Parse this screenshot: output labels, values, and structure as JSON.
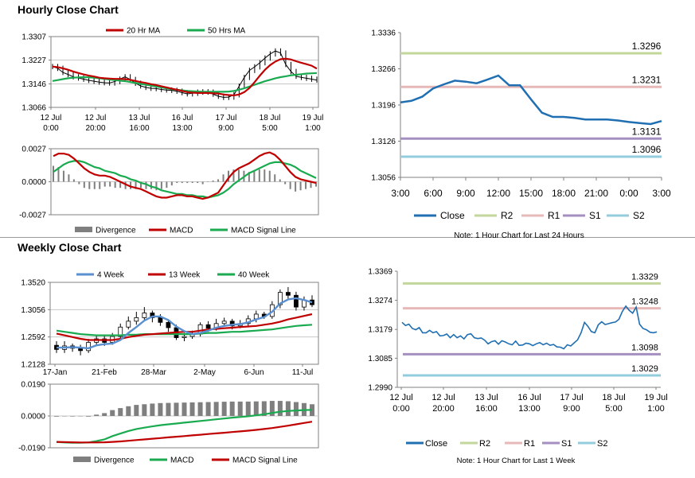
{
  "sections": {
    "hourly_title": "Hourly Close Chart",
    "weekly_title": "Weekly Close Chart"
  },
  "colors": {
    "ma_short": "#c00000",
    "ma_long": "#1aaa50",
    "close": "#1f6fb2",
    "week4": "#5a8fd0",
    "r2": "#c3d69b",
    "r1": "#e6b9b8",
    "s1": "#a48fc0",
    "s2": "#93cddd",
    "divergence": "#7f7f7f",
    "candle": "#000000"
  },
  "chart_data": [
    {
      "id": "hourly_price",
      "type": "candlestick",
      "title": "",
      "y_ticks": [
        "1.3307",
        "1.3227",
        "1.3146",
        "1.3066"
      ],
      "ylim": [
        1.3066,
        1.3307
      ],
      "x_ticks": [
        [
          "12 Jul",
          "0:00"
        ],
        [
          "12 Jul",
          "20:00"
        ],
        [
          "13 Jul",
          "16:00"
        ],
        [
          "16 Jul",
          "13:00"
        ],
        [
          "17 Jul",
          "9:00"
        ],
        [
          "18 Jul",
          "5:00"
        ],
        [
          "19 Jul",
          "1:00"
        ]
      ],
      "legend": [
        "20 Hr MA",
        "50 Hrs MA"
      ],
      "close": [
        1.3205,
        1.3199,
        1.3185,
        1.3178,
        1.317,
        1.3166,
        1.3162,
        1.3158,
        1.3155,
        1.3152,
        1.315,
        1.3149,
        1.3154,
        1.3162,
        1.317,
        1.3161,
        1.3148,
        1.3139,
        1.3134,
        1.3131,
        1.313,
        1.3127,
        1.3125,
        1.3124,
        1.3121,
        1.3116,
        1.3112,
        1.3114,
        1.3118,
        1.3119,
        1.3118,
        1.3111,
        1.3104,
        1.31,
        1.3101,
        1.3109,
        1.3138,
        1.3168,
        1.3192,
        1.3204,
        1.3218,
        1.3234,
        1.3248,
        1.3258,
        1.3251,
        1.3212,
        1.3188,
        1.3172,
        1.3168,
        1.3165,
        1.3162,
        1.3159
      ],
      "ma20": [
        1.3205,
        1.3203,
        1.3199,
        1.3194,
        1.3188,
        1.3183,
        1.3178,
        1.3174,
        1.3171,
        1.3167,
        1.3165,
        1.3164,
        1.3163,
        1.3163,
        1.3162,
        1.316,
        1.3156,
        1.3152,
        1.3149,
        1.3145,
        1.3142,
        1.3138,
        1.3134,
        1.313,
        1.3126,
        1.3122,
        1.3118,
        1.3116,
        1.3115,
        1.3115,
        1.3115,
        1.3114,
        1.3113,
        1.311,
        1.3108,
        1.3107,
        1.311,
        1.3118,
        1.3132,
        1.3152,
        1.3174,
        1.3194,
        1.321,
        1.3222,
        1.323,
        1.3232,
        1.3229,
        1.3223,
        1.3218,
        1.3213,
        1.3208,
        1.3198
      ],
      "ma50": [
        1.3156,
        1.3159,
        1.3162,
        1.3165,
        1.3167,
        1.3168,
        1.3169,
        1.3168,
        1.3167,
        1.3165,
        1.3163,
        1.3161,
        1.3159,
        1.3157,
        1.3155,
        1.3152,
        1.3149,
        1.3146,
        1.3143,
        1.314,
        1.3137,
        1.3134,
        1.3131,
        1.3128,
        1.3126,
        1.3124,
        1.3122,
        1.3121,
        1.312,
        1.3119,
        1.3119,
        1.3119,
        1.3119,
        1.3119,
        1.312,
        1.3122,
        1.3126,
        1.3131,
        1.3137,
        1.3143,
        1.3149,
        1.3155,
        1.316,
        1.3165,
        1.3169,
        1.3172,
        1.3175,
        1.3177,
        1.3179,
        1.3181,
        1.3182,
        1.3183
      ]
    },
    {
      "id": "hourly_macd",
      "type": "line+bar",
      "y_ticks": [
        "0.0027",
        "0.0000",
        "-0.0027"
      ],
      "ylim": [
        -0.0027,
        0.0027
      ],
      "legend": [
        "Divergence",
        "MACD",
        "MACD Signal Line"
      ],
      "macd": [
        0.0021,
        0.0023,
        0.0023,
        0.0022,
        0.0019,
        0.0015,
        0.0011,
        0.0008,
        0.0006,
        0.0005,
        0.0005,
        0.0004,
        0.0002,
        0.0,
        -0.0002,
        -0.0004,
        -0.0005,
        -0.0006,
        -0.0008,
        -0.001,
        -0.0012,
        -0.0013,
        -0.0013,
        -0.0012,
        -0.0011,
        -0.0011,
        -0.0012,
        -0.0012,
        -0.0013,
        -0.0014,
        -0.0013,
        -0.0011,
        -0.0009,
        -0.0003,
        0.0003,
        0.0008,
        0.0011,
        0.0013,
        0.0015,
        0.0018,
        0.0021,
        0.0023,
        0.0024,
        0.0022,
        0.0018,
        0.0013,
        0.0008,
        0.0004,
        0.0002,
        0.0001,
        0.0,
        -0.0001
      ],
      "signal": [
        0.0008,
        0.0011,
        0.0014,
        0.0016,
        0.0017,
        0.0017,
        0.0016,
        0.0014,
        0.0012,
        0.0011,
        0.0009,
        0.0008,
        0.0007,
        0.0005,
        0.0004,
        0.0002,
        0.0001,
        -0.0001,
        -0.0002,
        -0.0004,
        -0.0005,
        -0.0007,
        -0.0008,
        -0.0009,
        -0.001,
        -0.001,
        -0.0011,
        -0.0011,
        -0.0012,
        -0.0012,
        -0.0013,
        -0.0012,
        -0.0011,
        -0.0009,
        -0.0006,
        -0.0002,
        0.0001,
        0.0004,
        0.0007,
        0.0009,
        0.0011,
        0.0013,
        0.0015,
        0.0016,
        0.0016,
        0.0015,
        0.0014,
        0.0012,
        0.0009,
        0.0007,
        0.0005,
        0.0003
      ],
      "divergence": [
        0.0013,
        0.0012,
        0.0009,
        0.0006,
        0.0002,
        -0.0002,
        -0.0005,
        -0.0006,
        -0.0006,
        -0.0006,
        -0.0004,
        -0.0004,
        -0.0005,
        -0.0005,
        -0.0006,
        -0.0006,
        -0.0006,
        -0.0005,
        -0.0006,
        -0.0006,
        -0.0007,
        -0.0006,
        -0.0005,
        -0.0003,
        -0.0001,
        -0.0001,
        -0.0001,
        -0.0001,
        -0.0001,
        -0.0002,
        0.0,
        0.0001,
        0.0002,
        0.0006,
        0.0009,
        0.001,
        0.001,
        0.0009,
        0.0008,
        0.0009,
        0.001,
        0.001,
        0.0009,
        0.0006,
        0.0002,
        -0.0002,
        -0.0006,
        -0.0008,
        -0.0007,
        -0.0006,
        -0.0005,
        -0.0004
      ]
    },
    {
      "id": "hourly_24h",
      "type": "line",
      "y_ticks": [
        "1.3336",
        "1.3266",
        "1.3196",
        "1.3126",
        "1.3056"
      ],
      "ylim": [
        1.3056,
        1.3336
      ],
      "x_ticks": [
        "3:00",
        "6:00",
        "9:00",
        "12:00",
        "15:00",
        "18:00",
        "21:00",
        "0:00",
        "3:00"
      ],
      "x": [
        0,
        1,
        2,
        3,
        4,
        5,
        6,
        7,
        8,
        9,
        10,
        11,
        12,
        13,
        14,
        15,
        16,
        17,
        18,
        19,
        20,
        21,
        22,
        23,
        24
      ],
      "close": [
        1.3201,
        1.3204,
        1.3212,
        1.3228,
        1.3236,
        1.3243,
        1.3241,
        1.3238,
        1.3245,
        1.3253,
        1.3234,
        1.3234,
        1.3207,
        1.3181,
        1.3173,
        1.3173,
        1.3171,
        1.3168,
        1.3168,
        1.3168,
        1.3166,
        1.3163,
        1.3161,
        1.3159,
        1.3165
      ],
      "levels": [
        {
          "name": "R2",
          "value": 1.3296,
          "label": "1.3296"
        },
        {
          "name": "R1",
          "value": 1.3231,
          "label": "1.3231"
        },
        {
          "name": "S1",
          "value": 1.3131,
          "label": "1.3131"
        },
        {
          "name": "S2",
          "value": 1.3096,
          "label": "1.3096"
        }
      ],
      "legend": [
        "Close",
        "R2",
        "R1",
        "S1",
        "S2"
      ],
      "note": "Note: 1 Hour Chart for Last 24 Hours"
    },
    {
      "id": "weekly_price",
      "type": "candlestick",
      "y_ticks": [
        "1.3520",
        "1.3056",
        "1.2592",
        "1.2128"
      ],
      "ylim": [
        1.2128,
        1.352
      ],
      "x_ticks": [
        "17-Jan",
        "21-Feb",
        "28-Mar",
        "2-May",
        "6-Jun",
        "11-Jul"
      ],
      "legend": [
        "4 Week",
        "13 Week",
        "40 Week"
      ],
      "candles": [
        [
          1.245,
          1.238,
          1.252,
          1.232
        ],
        [
          1.238,
          1.244,
          1.252,
          1.232
        ],
        [
          1.244,
          1.24,
          1.248,
          1.234
        ],
        [
          1.24,
          1.236,
          1.246,
          1.228
        ],
        [
          1.236,
          1.25,
          1.256,
          1.232
        ],
        [
          1.25,
          1.256,
          1.262,
          1.246
        ],
        [
          1.256,
          1.25,
          1.262,
          1.244
        ],
        [
          1.25,
          1.26,
          1.266,
          1.246
        ],
        [
          1.26,
          1.276,
          1.282,
          1.254
        ],
        [
          1.276,
          1.286,
          1.294,
          1.272
        ],
        [
          1.286,
          1.292,
          1.302,
          1.28
        ],
        [
          1.292,
          1.3,
          1.31,
          1.286
        ],
        [
          1.3,
          1.292,
          1.304,
          1.284
        ],
        [
          1.292,
          1.284,
          1.298,
          1.278
        ],
        [
          1.284,
          1.275,
          1.288,
          1.268
        ],
        [
          1.275,
          1.258,
          1.28,
          1.254
        ],
        [
          1.258,
          1.26,
          1.266,
          1.252
        ],
        [
          1.26,
          1.264,
          1.27,
          1.256
        ],
        [
          1.264,
          1.28,
          1.284,
          1.26
        ],
        [
          1.28,
          1.274,
          1.286,
          1.268
        ],
        [
          1.274,
          1.282,
          1.29,
          1.27
        ],
        [
          1.282,
          1.286,
          1.292,
          1.278
        ],
        [
          1.286,
          1.278,
          1.29,
          1.272
        ],
        [
          1.278,
          1.282,
          1.288,
          1.274
        ],
        [
          1.282,
          1.29,
          1.296,
          1.278
        ],
        [
          1.29,
          1.298,
          1.304,
          1.284
        ],
        [
          1.298,
          1.294,
          1.302,
          1.29
        ],
        [
          1.294,
          1.314,
          1.32,
          1.29
        ],
        [
          1.314,
          1.335,
          1.34,
          1.308
        ],
        [
          1.335,
          1.33,
          1.344,
          1.324
        ],
        [
          1.33,
          1.31,
          1.336,
          1.304
        ],
        [
          1.31,
          1.322,
          1.328,
          1.304
        ],
        [
          1.322,
          1.314,
          1.33,
          1.31
        ]
      ],
      "ma4": [
        1.241,
        1.241,
        1.242,
        1.241,
        1.24,
        1.245,
        1.247,
        1.248,
        1.254,
        1.266,
        1.276,
        1.287,
        1.294,
        1.294,
        1.288,
        1.277,
        1.269,
        1.264,
        1.266,
        1.27,
        1.275,
        1.278,
        1.28,
        1.281,
        1.284,
        1.289,
        1.293,
        1.302,
        1.316,
        1.323,
        1.325,
        1.322,
        1.318
      ],
      "ma13": [
        1.265,
        1.262,
        1.259,
        1.256,
        1.254,
        1.254,
        1.254,
        1.254,
        1.256,
        1.259,
        1.261,
        1.263,
        1.264,
        1.265,
        1.266,
        1.267,
        1.268,
        1.268,
        1.27,
        1.272,
        1.273,
        1.274,
        1.275,
        1.276,
        1.277,
        1.278,
        1.28,
        1.282,
        1.285,
        1.289,
        1.292,
        1.295,
        1.298
      ],
      "ma40": [
        1.27,
        1.268,
        1.266,
        1.264,
        1.263,
        1.262,
        1.262,
        1.262,
        1.262,
        1.263,
        1.263,
        1.264,
        1.264,
        1.264,
        1.264,
        1.264,
        1.264,
        1.264,
        1.265,
        1.266,
        1.266,
        1.267,
        1.268,
        1.268,
        1.269,
        1.27,
        1.271,
        1.272,
        1.274,
        1.276,
        1.278,
        1.279,
        1.28
      ]
    },
    {
      "id": "weekly_macd",
      "type": "line+bar",
      "y_ticks": [
        "0.0190",
        "0.0000",
        "-0.0190"
      ],
      "ylim": [
        -0.019,
        0.019
      ],
      "legend": [
        "Divergence",
        "MACD",
        "MACD Signal Line"
      ],
      "macd": [
        -0.0155,
        -0.0158,
        -0.016,
        -0.016,
        -0.0158,
        -0.015,
        -0.014,
        -0.012,
        -0.0105,
        -0.009,
        -0.0078,
        -0.007,
        -0.0062,
        -0.0055,
        -0.005,
        -0.0045,
        -0.004,
        -0.0035,
        -0.003,
        -0.0025,
        -0.002,
        -0.0015,
        -0.001,
        -0.0006,
        -0.0002,
        0.0004,
        0.001,
        0.0018,
        0.0025,
        0.003,
        0.0033,
        0.0035,
        0.0036
      ],
      "signal": [
        -0.0155,
        -0.0156,
        -0.0157,
        -0.0158,
        -0.0158,
        -0.0158,
        -0.0157,
        -0.0155,
        -0.0152,
        -0.0148,
        -0.0144,
        -0.014,
        -0.0136,
        -0.0132,
        -0.0128,
        -0.0124,
        -0.012,
        -0.0116,
        -0.0112,
        -0.0108,
        -0.0104,
        -0.01,
        -0.0096,
        -0.0092,
        -0.0088,
        -0.0083,
        -0.0078,
        -0.0072,
        -0.0065,
        -0.0058,
        -0.005,
        -0.0042,
        -0.0034
      ],
      "divergence": [
        0.0,
        -0.0002,
        -0.0003,
        -0.0002,
        0.0,
        0.0008,
        0.0017,
        0.0035,
        0.0047,
        0.0058,
        0.0066,
        0.007,
        0.0074,
        0.0077,
        0.0078,
        0.0079,
        0.008,
        0.0081,
        0.0082,
        0.0083,
        0.0084,
        0.0085,
        0.0086,
        0.0086,
        0.0086,
        0.0087,
        0.0088,
        0.009,
        0.009,
        0.0088,
        0.0083,
        0.0077,
        0.007
      ]
    },
    {
      "id": "weekly_close",
      "type": "line",
      "y_ticks": [
        "1.3369",
        "1.3274",
        "1.3179",
        "1.3085",
        "1.2990"
      ],
      "ylim": [
        1.299,
        1.3369
      ],
      "x_ticks": [
        [
          "12 Jul",
          "0:00"
        ],
        [
          "12 Jul",
          "20:00"
        ],
        [
          "13 Jul",
          "16:00"
        ],
        [
          "16 Jul",
          "13:00"
        ],
        [
          "17 Jul",
          "9:00"
        ],
        [
          "18 Jul",
          "5:00"
        ],
        [
          "19 Jul",
          "1:00"
        ]
      ],
      "close": [
        1.3202,
        1.3192,
        1.3196,
        1.3182,
        1.3178,
        1.3185,
        1.3168,
        1.3168,
        1.3176,
        1.3168,
        1.3172,
        1.3158,
        1.3159,
        1.3164,
        1.3152,
        1.3162,
        1.3152,
        1.3158,
        1.3148,
        1.3162,
        1.3165,
        1.3152,
        1.3149,
        1.3151,
        1.3144,
        1.3132,
        1.3139,
        1.3142,
        1.3131,
        1.3142,
        1.3138,
        1.3132,
        1.3129,
        1.3141,
        1.3127,
        1.3128,
        1.3134,
        1.3132,
        1.3126,
        1.3132,
        1.3136,
        1.3129,
        1.3134,
        1.3127,
        1.313,
        1.3122,
        1.3121,
        1.3116,
        1.3129,
        1.3125,
        1.3135,
        1.3145,
        1.3168,
        1.3202,
        1.3189,
        1.3172,
        1.3168,
        1.3194,
        1.3204,
        1.3195,
        1.3198,
        1.3201,
        1.3203,
        1.3212,
        1.3238,
        1.3255,
        1.3241,
        1.3232,
        1.3252,
        1.3196,
        1.3182,
        1.3178,
        1.317,
        1.3168,
        1.3171
      ],
      "levels": [
        {
          "name": "R2",
          "value": 1.3329,
          "label": "1.3329"
        },
        {
          "name": "R1",
          "value": 1.3248,
          "label": "1.3248"
        },
        {
          "name": "S1",
          "value": 1.3098,
          "label": "1.3098"
        },
        {
          "name": "S2",
          "value": 1.3029,
          "label": "1.3029"
        }
      ],
      "legend": [
        "Close",
        "R2",
        "R1",
        "S1",
        "S2"
      ],
      "note": "Note: 1 Hour Chart for Last 1 Week"
    }
  ]
}
